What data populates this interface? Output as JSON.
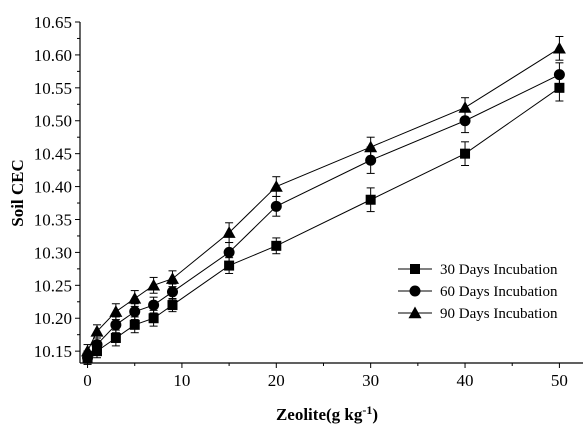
{
  "chart_data": {
    "type": "line",
    "xlabel": "Zeolite(g kg",
    "xlabel_sup": "-1",
    "xlabel_suffix": ")",
    "ylabel": "Soil CEC",
    "xlim": [
      -0.8,
      52.5
    ],
    "ylim": [
      10.132,
      10.65
    ],
    "x_ticks": [
      0,
      10,
      20,
      30,
      40,
      50
    ],
    "x_tick_labels": [
      "0",
      "10",
      "20",
      "30",
      "40",
      "50"
    ],
    "y_ticks": [
      10.15,
      10.2,
      10.25,
      10.3,
      10.35,
      10.4,
      10.45,
      10.5,
      10.55,
      10.6,
      10.65
    ],
    "y_tick_labels": [
      "10.15",
      "10.20",
      "10.25",
      "10.30",
      "10.35",
      "10.40",
      "10.45",
      "10.50",
      "10.55",
      "10.60",
      "10.65"
    ],
    "legend_position": "lower-right",
    "grid": false,
    "x": [
      0,
      1,
      3,
      5,
      7,
      9,
      15,
      20,
      30,
      40,
      50
    ],
    "series": [
      {
        "name": "30 Days Incubation",
        "marker": "square",
        "values": [
          10.14,
          10.15,
          10.17,
          10.19,
          10.2,
          10.22,
          10.28,
          10.31,
          10.38,
          10.45,
          10.55
        ],
        "errors": [
          0.01,
          0.01,
          0.012,
          0.012,
          0.012,
          0.01,
          0.012,
          0.012,
          0.018,
          0.018,
          0.02
        ]
      },
      {
        "name": "60 Days Incubation",
        "marker": "circle",
        "values": [
          10.14,
          10.16,
          10.19,
          10.21,
          10.22,
          10.24,
          10.3,
          10.37,
          10.44,
          10.5,
          10.57
        ],
        "errors": [
          0.01,
          0.01,
          0.012,
          0.012,
          0.012,
          0.012,
          0.015,
          0.015,
          0.02,
          0.018,
          0.018
        ]
      },
      {
        "name": "90 Days Incubation",
        "marker": "triangle",
        "values": [
          10.15,
          10.18,
          10.21,
          10.23,
          10.25,
          10.26,
          10.33,
          10.4,
          10.46,
          10.52,
          10.61
        ],
        "errors": [
          0.01,
          0.01,
          0.012,
          0.012,
          0.012,
          0.012,
          0.015,
          0.015,
          0.015,
          0.015,
          0.018
        ]
      }
    ]
  }
}
